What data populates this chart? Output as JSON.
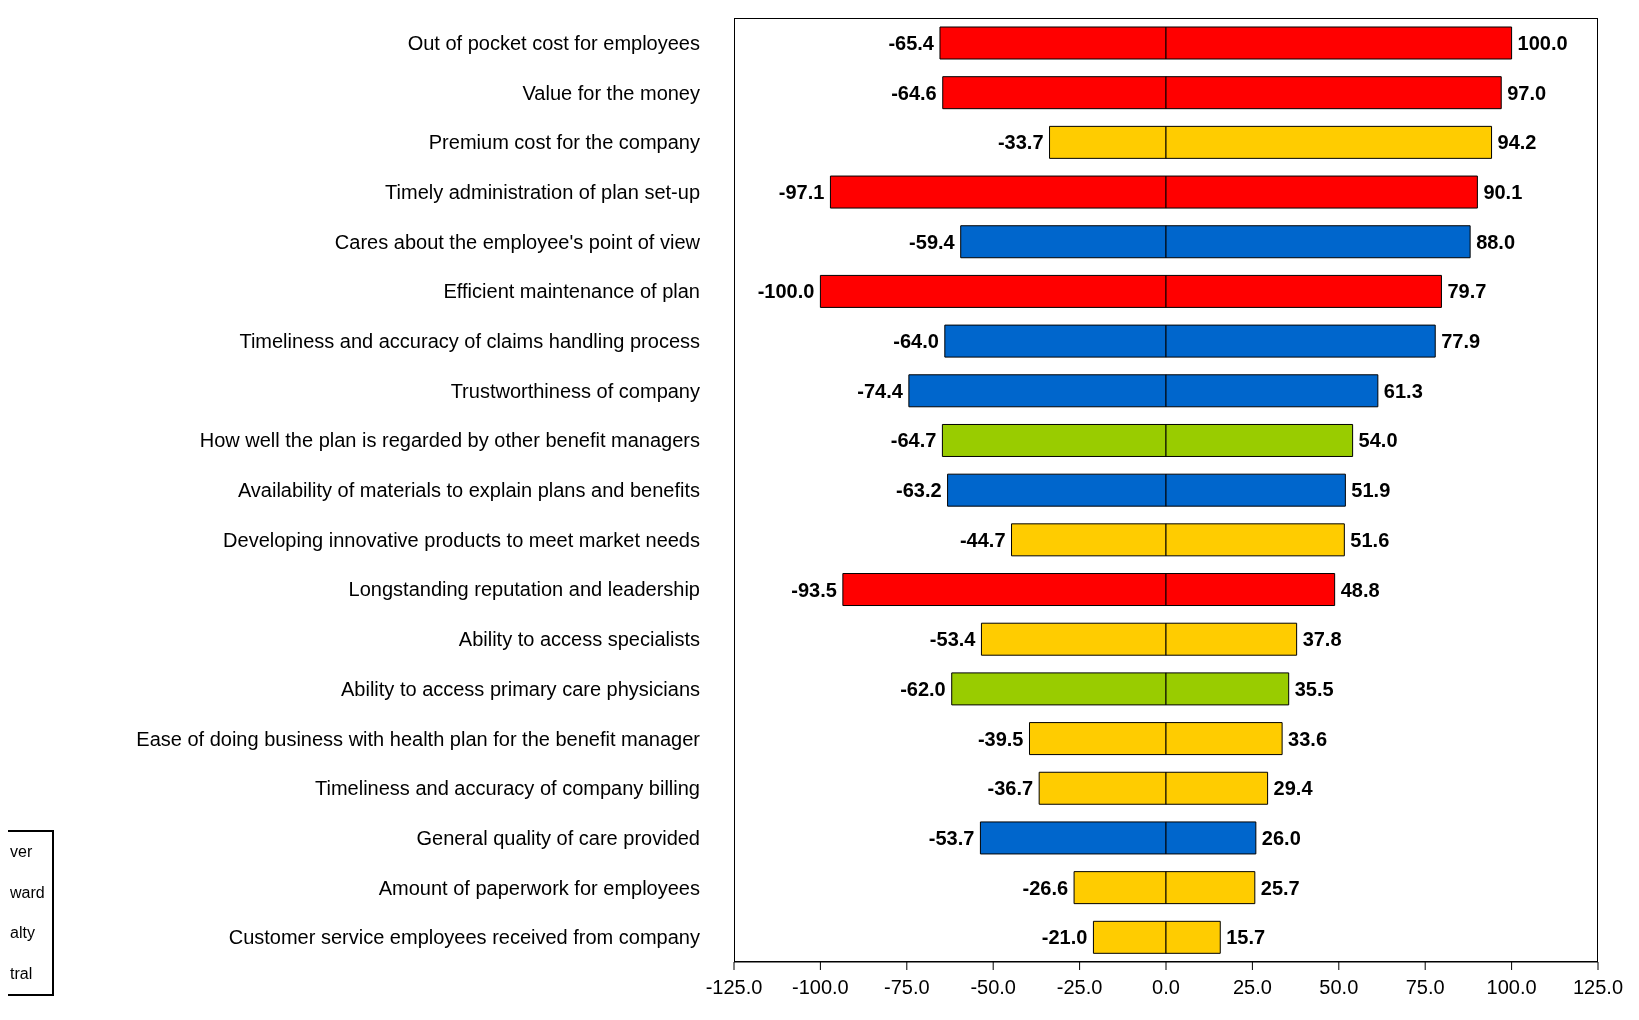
{
  "chart_data": {
    "type": "bar",
    "orientation": "horizontal",
    "categories": [
      "Out of pocket cost for employees",
      "Value for the money",
      "Premium cost for the company",
      "Timely administration of plan set-up",
      "Cares about the employee's point of view",
      "Efficient maintenance of plan",
      "Timeliness and accuracy of claims handling process",
      "Trustworthiness of company",
      "How well the plan is regarded by other benefit managers",
      "Availability of materials to explain plans and benefits",
      "Developing innovative products to meet market needs",
      "Longstanding reputation and leadership",
      "Ability to access specialists",
      "Ability to access primary care physicians",
      "Ease of doing business with health plan for the benefit manager",
      "Timeliness and accuracy of company billing",
      "General quality of care provided",
      "Amount of paperwork for employees",
      "Customer service employees received from company"
    ],
    "series": [
      {
        "value_labels": [
          "-65.4",
          "-64.6",
          "-33.7",
          "-97.1",
          "-59.4",
          "-100.0",
          "-64.0",
          "-74.4",
          "-64.7",
          "-63.2",
          "-44.7",
          "-93.5",
          "-53.4",
          "-62.0",
          "-39.5",
          "-36.7",
          "-53.7",
          "-26.6",
          "-21.0"
        ],
        "values": [
          -65.4,
          -64.6,
          -33.7,
          -97.1,
          -59.4,
          -100.0,
          -64.0,
          -74.4,
          -64.7,
          -63.2,
          -44.7,
          -93.5,
          -53.4,
          -62.0,
          -39.5,
          -36.7,
          -53.7,
          -26.6,
          -21.0
        ],
        "colors": [
          "#ff0000",
          "#ff0000",
          "#ffcc00",
          "#ff0000",
          "#0066cc",
          "#ff0000",
          "#0066cc",
          "#0066cc",
          "#99cc00",
          "#0066cc",
          "#ffcc00",
          "#ff0000",
          "#ffcc00",
          "#99cc00",
          "#ffcc00",
          "#ffcc00",
          "#0066cc",
          "#ffcc00",
          "#ffcc00"
        ]
      },
      {
        "value_labels": [
          "100.0",
          "97.0",
          "94.2",
          "90.1",
          "88.0",
          "79.7",
          "77.9",
          "61.3",
          "54.0",
          "51.9",
          "51.6",
          "48.8",
          "37.8",
          "35.5",
          "33.6",
          "29.4",
          "26.0",
          "25.7",
          "15.7"
        ],
        "values": [
          100.0,
          97.0,
          94.2,
          90.1,
          88.0,
          79.7,
          77.9,
          61.3,
          54.0,
          51.9,
          51.6,
          48.8,
          37.8,
          35.5,
          33.6,
          29.4,
          26.0,
          25.7,
          15.7
        ],
        "colors": [
          "#ff0000",
          "#ff0000",
          "#ffcc00",
          "#ff0000",
          "#0066cc",
          "#ff0000",
          "#0066cc",
          "#0066cc",
          "#99cc00",
          "#0066cc",
          "#ffcc00",
          "#ff0000",
          "#ffcc00",
          "#99cc00",
          "#ffcc00",
          "#ffcc00",
          "#0066cc",
          "#ffcc00",
          "#ffcc00"
        ]
      }
    ],
    "xlim": [
      -125,
      125
    ],
    "xticks": [
      {
        "value": -125,
        "label": "-125.0"
      },
      {
        "value": -100,
        "label": "-100.0"
      },
      {
        "value": -75,
        "label": "-75.0"
      },
      {
        "value": -50,
        "label": "-50.0"
      },
      {
        "value": -25,
        "label": "-25.0"
      },
      {
        "value": 0,
        "label": "0.0"
      },
      {
        "value": 25,
        "label": "25.0"
      },
      {
        "value": 50,
        "label": "50.0"
      },
      {
        "value": 75,
        "label": "75.0"
      },
      {
        "value": 100,
        "label": "100.0"
      },
      {
        "value": 125,
        "label": "125.0"
      }
    ],
    "stacked": true,
    "grid": false,
    "annotations": [
      "ver",
      "ward",
      "alty",
      "tral"
    ]
  }
}
